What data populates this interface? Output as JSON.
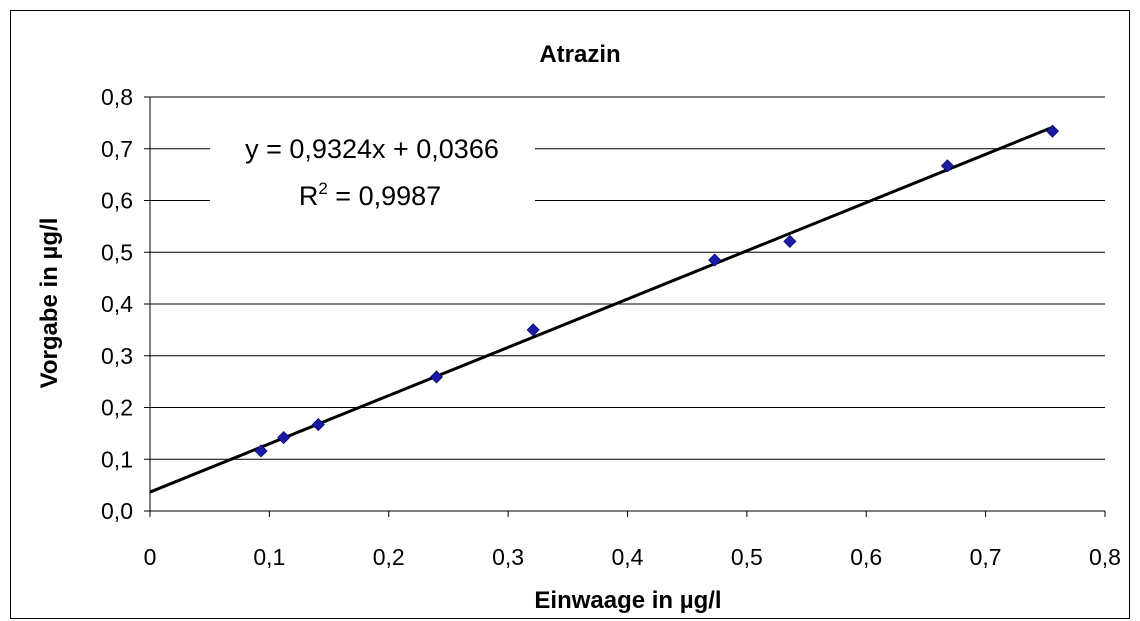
{
  "chart_data": {
    "type": "scatter",
    "title": "Atrazin",
    "xlabel": "Einwaage in µg/l",
    "ylabel": "Vorgabe in µg/l",
    "xlim": [
      0,
      0.8
    ],
    "ylim": [
      0,
      0.8
    ],
    "x_ticks": [
      "0",
      "0,1",
      "0,2",
      "0,3",
      "0,4",
      "0,5",
      "0,6",
      "0,7",
      "0,8"
    ],
    "y_ticks": [
      "0,0",
      "0,1",
      "0,2",
      "0,3",
      "0,4",
      "0,5",
      "0,6",
      "0,7",
      "0,8"
    ],
    "grid": "horizontal",
    "marker_color": "#1a1aa6",
    "series": [
      {
        "x": [
          0.093,
          0.112,
          0.141,
          0.24,
          0.321,
          0.473,
          0.536,
          0.668,
          0.756
        ],
        "y": [
          0.116,
          0.142,
          0.167,
          0.259,
          0.35,
          0.485,
          0.521,
          0.667,
          0.734
        ]
      }
    ],
    "trendline": {
      "slope": 0.9324,
      "intercept": 0.0366,
      "x_range": [
        0,
        0.756
      ]
    },
    "annotations": {
      "equation": "y = 0,9324x + 0,0366",
      "r_squared_prefix": "R",
      "r_squared_exp": "2",
      "r_squared_suffix": " = 0,9987"
    }
  }
}
